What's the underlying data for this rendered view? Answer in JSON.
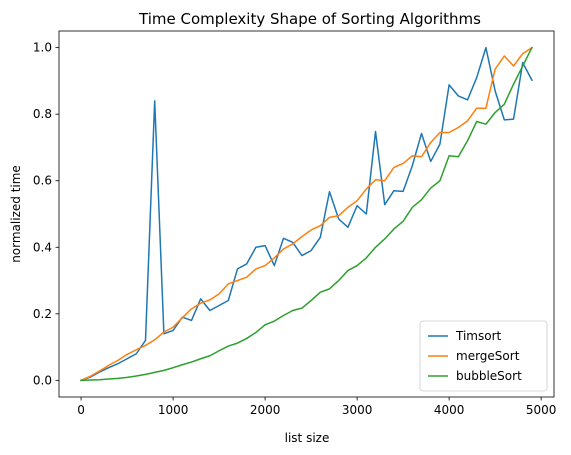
{
  "chart_data": {
    "type": "line",
    "title": "Time Complexity Shape of Sorting Algorithms",
    "xlabel": "list size",
    "ylabel": "normalized time",
    "xlim": [
      -240,
      5140
    ],
    "ylim": [
      -0.05,
      1.05
    ],
    "xticks": [
      0,
      1000,
      2000,
      3000,
      4000,
      5000
    ],
    "yticks": [
      0.0,
      0.2,
      0.4,
      0.6,
      0.8,
      1.0
    ],
    "xtick_labels": [
      "0",
      "1000",
      "2000",
      "3000",
      "4000",
      "5000"
    ],
    "ytick_labels": [
      "0.0",
      "0.2",
      "0.4",
      "0.6",
      "0.8",
      "1.0"
    ],
    "grid": false,
    "legend_position": "lower-right",
    "x": [
      0,
      100,
      200,
      300,
      400,
      500,
      600,
      700,
      800,
      900,
      1000,
      1100,
      1200,
      1300,
      1400,
      1500,
      1600,
      1700,
      1800,
      1900,
      2000,
      2100,
      2200,
      2300,
      2400,
      2500,
      2600,
      2700,
      2800,
      2900,
      3000,
      3100,
      3200,
      3300,
      3400,
      3500,
      3600,
      3700,
      3800,
      3900,
      4000,
      4100,
      4200,
      4300,
      4400,
      4500,
      4600,
      4700,
      4800,
      4900
    ],
    "series": [
      {
        "name": "Timsort",
        "color": "#1f77b4",
        "values": [
          0.0,
          0.01,
          0.025,
          0.038,
          0.05,
          0.065,
          0.08,
          0.12,
          0.84,
          0.14,
          0.15,
          0.19,
          0.18,
          0.245,
          0.21,
          0.225,
          0.24,
          0.335,
          0.35,
          0.4,
          0.405,
          0.345,
          0.427,
          0.415,
          0.375,
          0.39,
          0.43,
          0.567,
          0.485,
          0.46,
          0.525,
          0.5,
          0.748,
          0.528,
          0.57,
          0.568,
          0.645,
          0.742,
          0.658,
          0.71,
          0.888,
          0.855,
          0.843,
          0.91,
          1.0,
          0.87,
          0.783,
          0.785,
          0.955,
          0.902
        ]
      },
      {
        "name": "mergeSort",
        "color": "#ff7f0e",
        "values": [
          0.0,
          0.012,
          0.028,
          0.045,
          0.06,
          0.078,
          0.092,
          0.105,
          0.122,
          0.145,
          0.16,
          0.188,
          0.215,
          0.232,
          0.242,
          0.26,
          0.29,
          0.3,
          0.31,
          0.335,
          0.345,
          0.368,
          0.395,
          0.41,
          0.432,
          0.452,
          0.465,
          0.49,
          0.495,
          0.52,
          0.54,
          0.575,
          0.603,
          0.6,
          0.64,
          0.652,
          0.675,
          0.672,
          0.715,
          0.745,
          0.745,
          0.76,
          0.78,
          0.818,
          0.818,
          0.935,
          0.975,
          0.945,
          0.982,
          1.0
        ]
      },
      {
        "name": "bubbleSort",
        "color": "#2ca02c",
        "values": [
          0.0,
          0.001,
          0.002,
          0.004,
          0.006,
          0.009,
          0.013,
          0.018,
          0.024,
          0.03,
          0.038,
          0.047,
          0.055,
          0.065,
          0.074,
          0.089,
          0.103,
          0.112,
          0.126,
          0.144,
          0.167,
          0.178,
          0.195,
          0.21,
          0.217,
          0.24,
          0.265,
          0.275,
          0.3,
          0.33,
          0.345,
          0.368,
          0.4,
          0.425,
          0.455,
          0.478,
          0.52,
          0.543,
          0.578,
          0.6,
          0.675,
          0.672,
          0.72,
          0.778,
          0.77,
          0.805,
          0.83,
          0.89,
          0.945,
          1.0
        ]
      }
    ]
  }
}
